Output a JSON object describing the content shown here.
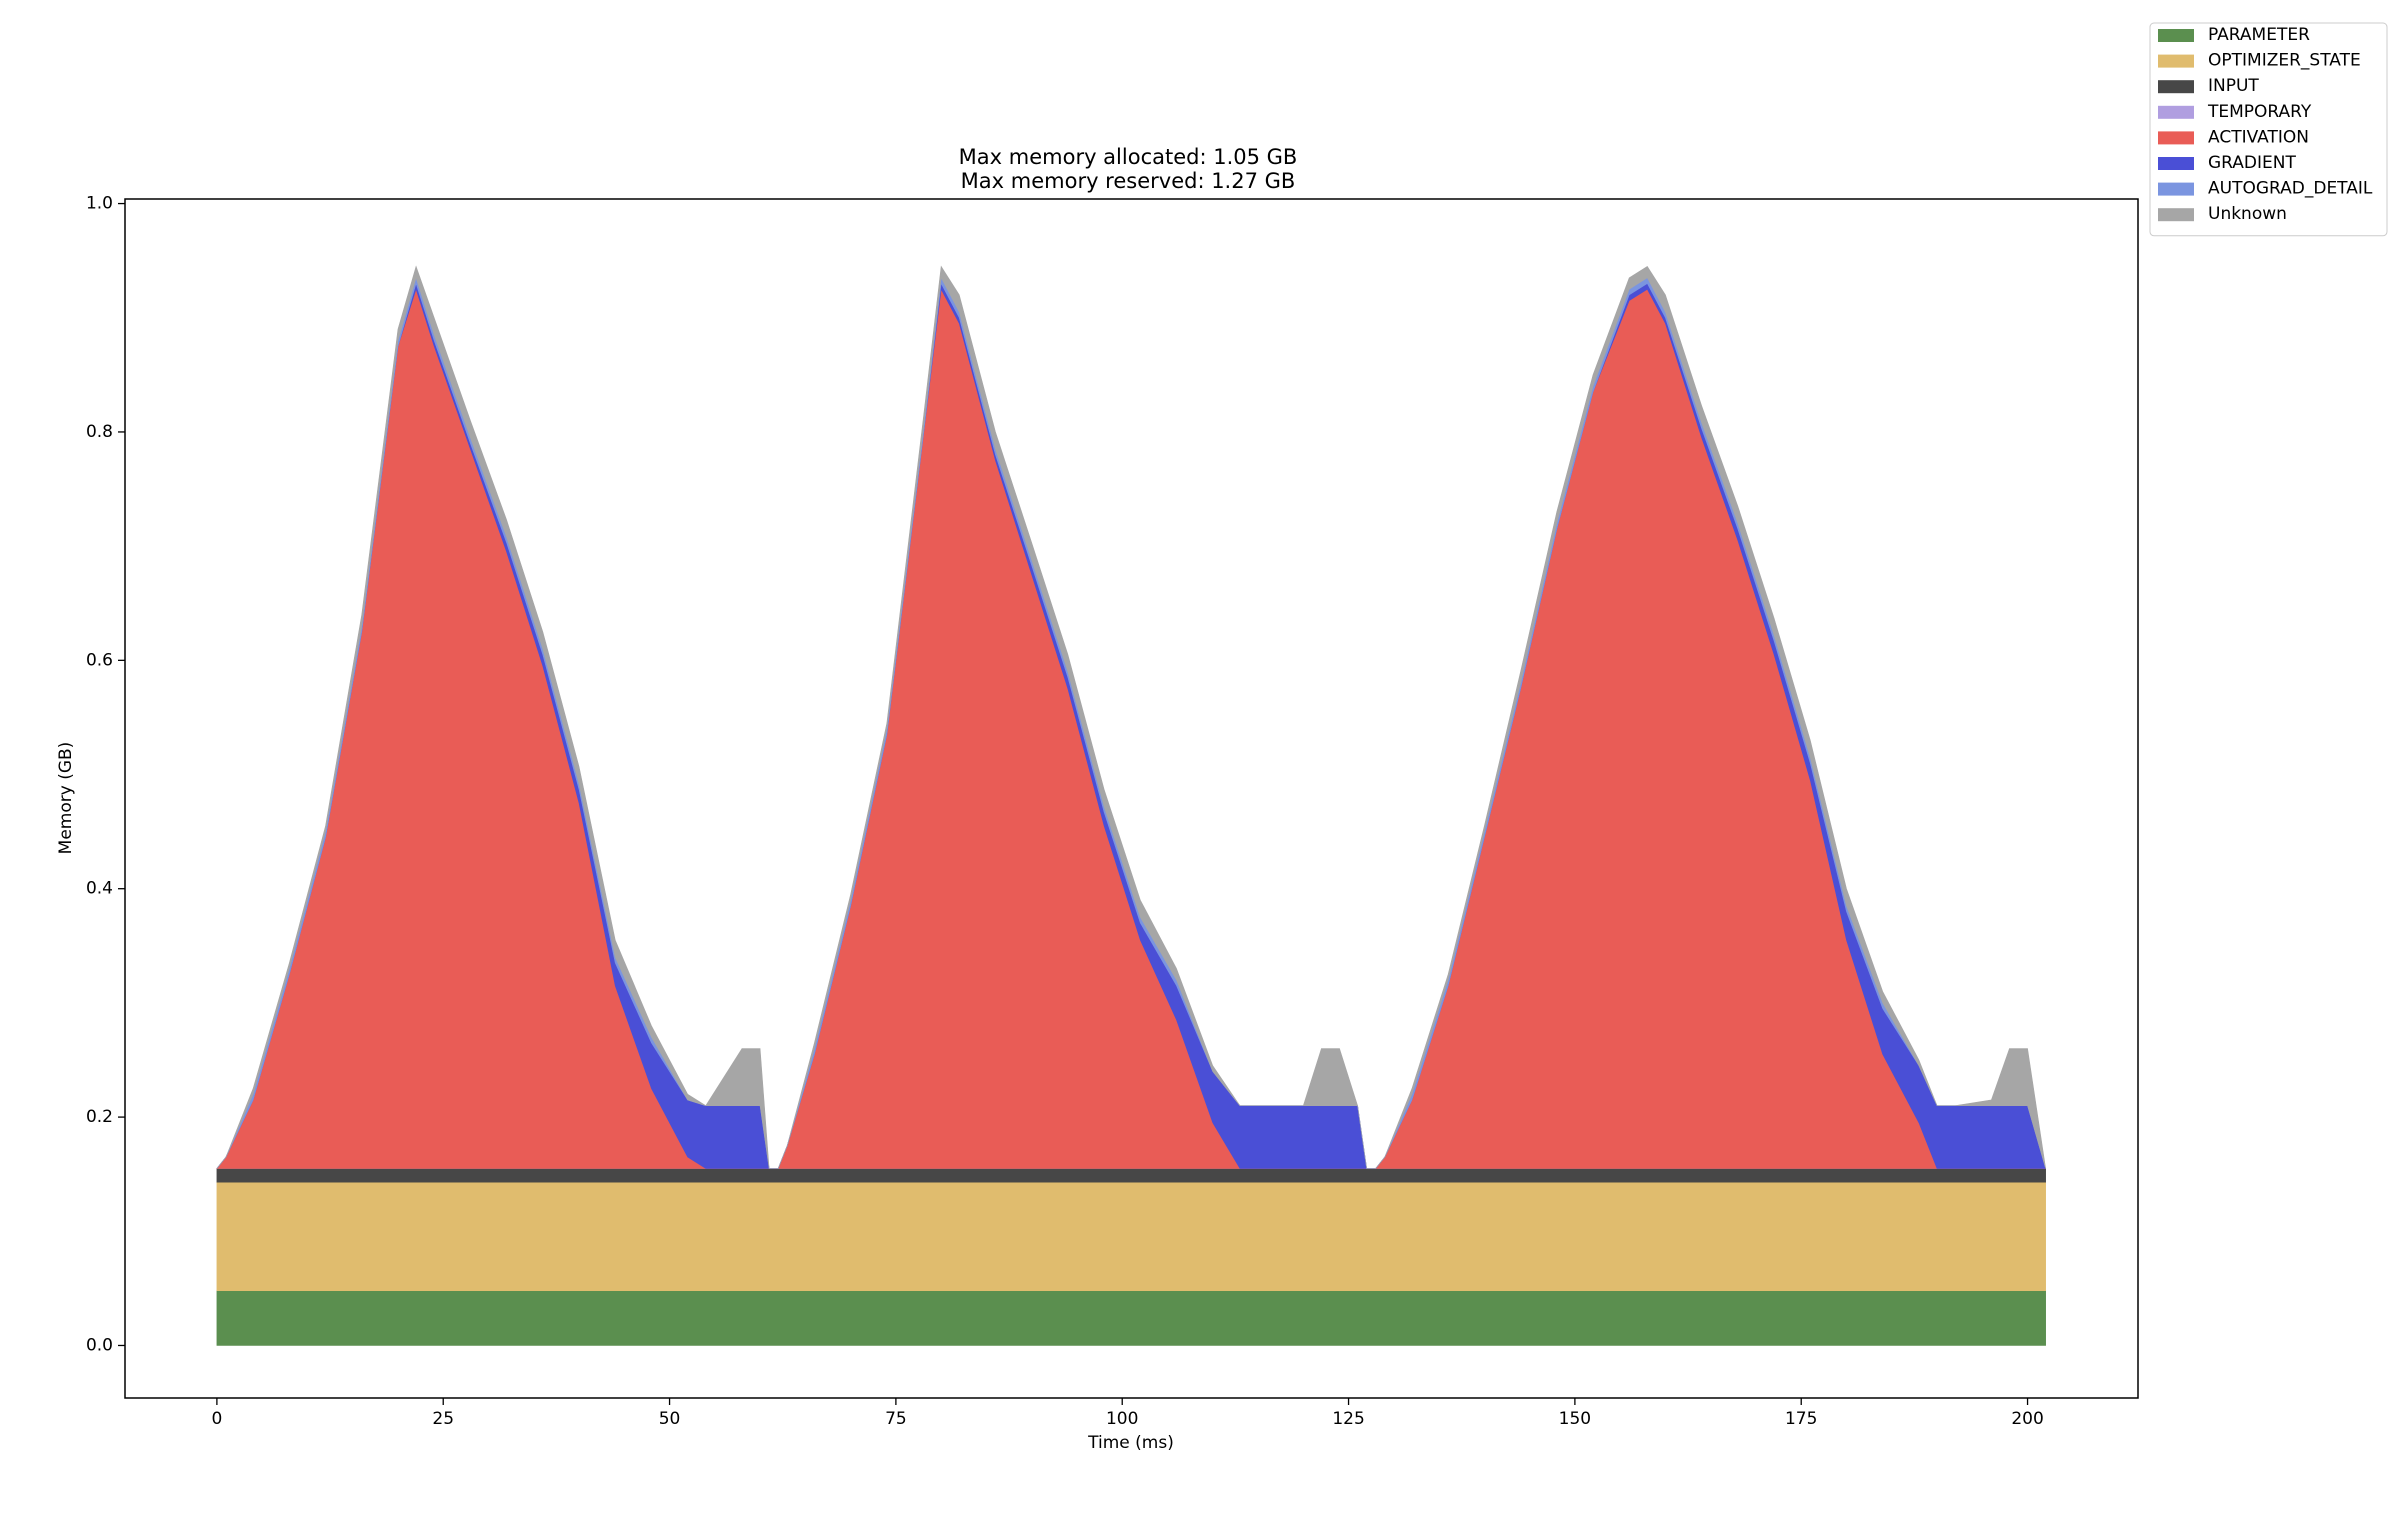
{
  "chart_data": {
    "type": "stacked_area",
    "title": "Max memory allocated: 1.05 GB",
    "subtitle": "Max memory reserved: 1.27 GB",
    "x_label": "Time (ms)",
    "y_label": "Memory (GB)",
    "xlim": [
      -10.15,
      212.2
    ],
    "ylim": [
      -0.046,
      1.004
    ],
    "xticks": [
      0,
      25,
      50,
      75,
      100,
      125,
      150,
      175,
      200
    ],
    "yticks": [
      {
        "value": 0,
        "label": "0.0"
      },
      0.2,
      0.4,
      0.6,
      0.8,
      {
        "value": 1,
        "label": "1.0"
      }
    ],
    "legend": "outside upper right",
    "x": [
      0,
      1,
      4,
      8,
      12,
      16,
      20,
      22,
      24,
      28,
      32,
      36,
      40,
      44,
      48,
      52,
      54,
      58,
      60,
      61,
      62,
      63,
      66,
      70,
      74,
      78,
      80,
      82,
      86,
      90,
      94,
      98,
      102,
      106,
      110,
      113,
      116,
      120,
      122,
      124,
      126,
      127,
      128,
      129,
      132,
      136,
      140,
      144,
      148,
      152,
      156,
      158,
      160,
      164,
      168,
      172,
      176,
      180,
      184,
      188,
      190,
      192,
      196,
      198,
      200,
      202
    ],
    "series": [
      {
        "name": "PARAMETER",
        "color": "#5b8f4f",
        "values": [
          0.048,
          0.048,
          0.048,
          0.048,
          0.048,
          0.048,
          0.048,
          0.048,
          0.048,
          0.048,
          0.048,
          0.048,
          0.048,
          0.048,
          0.048,
          0.048,
          0.048,
          0.048,
          0.048,
          0.048,
          0.048,
          0.048,
          0.048,
          0.048,
          0.048,
          0.048,
          0.048,
          0.048,
          0.048,
          0.048,
          0.048,
          0.048,
          0.048,
          0.048,
          0.048,
          0.048,
          0.048,
          0.048,
          0.048,
          0.048,
          0.048,
          0.048,
          0.048,
          0.048,
          0.048,
          0.048,
          0.048,
          0.048,
          0.048,
          0.048,
          0.048,
          0.048,
          0.048,
          0.048,
          0.048,
          0.048,
          0.048,
          0.048,
          0.048,
          0.048,
          0.048,
          0.048,
          0.048,
          0.048,
          0.048,
          0.048
        ]
      },
      {
        "name": "OPTIMIZER_STATE",
        "color": "#e0bc6e",
        "values": [
          0.095,
          0.095,
          0.095,
          0.095,
          0.095,
          0.095,
          0.095,
          0.095,
          0.095,
          0.095,
          0.095,
          0.095,
          0.095,
          0.095,
          0.095,
          0.095,
          0.095,
          0.095,
          0.095,
          0.095,
          0.095,
          0.095,
          0.095,
          0.095,
          0.095,
          0.095,
          0.095,
          0.095,
          0.095,
          0.095,
          0.095,
          0.095,
          0.095,
          0.095,
          0.095,
          0.095,
          0.095,
          0.095,
          0.095,
          0.095,
          0.095,
          0.095,
          0.095,
          0.095,
          0.095,
          0.095,
          0.095,
          0.095,
          0.095,
          0.095,
          0.095,
          0.095,
          0.095,
          0.095,
          0.095,
          0.095,
          0.095,
          0.095,
          0.095,
          0.095,
          0.095,
          0.095,
          0.095,
          0.095,
          0.095,
          0.095
        ]
      },
      {
        "name": "INPUT",
        "color": "#474747",
        "values": [
          0.012,
          0.012,
          0.012,
          0.012,
          0.012,
          0.012,
          0.012,
          0.012,
          0.012,
          0.012,
          0.012,
          0.012,
          0.012,
          0.012,
          0.012,
          0.012,
          0.012,
          0.012,
          0.012,
          0.012,
          0.012,
          0.012,
          0.012,
          0.012,
          0.012,
          0.012,
          0.012,
          0.012,
          0.012,
          0.012,
          0.012,
          0.012,
          0.012,
          0.012,
          0.012,
          0.012,
          0.012,
          0.012,
          0.012,
          0.012,
          0.012,
          0.012,
          0.012,
          0.012,
          0.012,
          0.012,
          0.012,
          0.012,
          0.012,
          0.012,
          0.012,
          0.012,
          0.012,
          0.012,
          0.012,
          0.012,
          0.012,
          0.012,
          0.012,
          0.012,
          0.012,
          0.012,
          0.012,
          0.012,
          0.012,
          0.012
        ]
      },
      {
        "name": "TEMPORARY",
        "color": "#b09ee0",
        "values": [
          0,
          0,
          0,
          0,
          0,
          0,
          0,
          0,
          0,
          0,
          0,
          0,
          0,
          0,
          0,
          0,
          0,
          0,
          0,
          0,
          0,
          0,
          0,
          0,
          0,
          0,
          0,
          0,
          0,
          0,
          0,
          0,
          0,
          0,
          0,
          0,
          0,
          0,
          0,
          0,
          0,
          0,
          0,
          0,
          0,
          0,
          0,
          0,
          0,
          0,
          0,
          0,
          0,
          0,
          0,
          0,
          0,
          0,
          0,
          0,
          0,
          0,
          0,
          0,
          0,
          0
        ]
      },
      {
        "name": "ACTIVATION",
        "color": "#e95c56",
        "values": [
          0,
          0.01,
          0.06,
          0.17,
          0.29,
          0.47,
          0.72,
          0.77,
          0.72,
          0.63,
          0.54,
          0.44,
          0.32,
          0.16,
          0.07,
          0.01,
          0,
          0,
          0,
          0,
          0,
          0.02,
          0.1,
          0.23,
          0.38,
          0.64,
          0.77,
          0.74,
          0.62,
          0.52,
          0.42,
          0.3,
          0.2,
          0.13,
          0.04,
          0,
          0,
          0,
          0,
          0,
          0,
          0,
          0,
          0.01,
          0.06,
          0.16,
          0.29,
          0.42,
          0.56,
          0.68,
          0.76,
          0.77,
          0.74,
          0.64,
          0.55,
          0.45,
          0.34,
          0.2,
          0.1,
          0.04,
          0,
          0,
          0,
          0,
          0,
          0
        ]
      },
      {
        "name": "GRADIENT",
        "color": "#4a4fd6",
        "values": [
          0,
          0,
          0,
          0,
          0,
          0,
          0,
          0.005,
          0.005,
          0.005,
          0.008,
          0.01,
          0.012,
          0.02,
          0.04,
          0.05,
          0.055,
          0.055,
          0.055,
          0,
          0,
          0,
          0,
          0,
          0,
          0,
          0.005,
          0.005,
          0.005,
          0.008,
          0.01,
          0.012,
          0.015,
          0.03,
          0.045,
          0.055,
          0.055,
          0.055,
          0.055,
          0.055,
          0.055,
          0,
          0,
          0,
          0,
          0,
          0,
          0,
          0,
          0,
          0.005,
          0.005,
          0.005,
          0.008,
          0.01,
          0.012,
          0.015,
          0.025,
          0.04,
          0.05,
          0.055,
          0.055,
          0.055,
          0.055,
          0.055,
          0
        ]
      },
      {
        "name": "AUTOGRAD_DETAIL",
        "color": "#7b95e0",
        "values": [
          0,
          0,
          0.005,
          0.005,
          0.005,
          0.005,
          0.005,
          0.005,
          0.005,
          0.005,
          0.005,
          0.005,
          0.005,
          0.005,
          0.005,
          0,
          0,
          0,
          0,
          0,
          0,
          0,
          0.005,
          0.005,
          0.005,
          0.005,
          0.005,
          0.005,
          0.005,
          0.005,
          0.005,
          0.005,
          0.005,
          0.005,
          0,
          0,
          0,
          0,
          0,
          0,
          0,
          0,
          0,
          0,
          0.005,
          0.005,
          0.005,
          0.005,
          0.005,
          0.005,
          0.005,
          0.005,
          0.005,
          0.005,
          0.005,
          0.005,
          0.005,
          0.005,
          0.005,
          0,
          0,
          0,
          0,
          0,
          0,
          0
        ]
      },
      {
        "name": "Unknown",
        "color": "#a6a6a6",
        "values": [
          0,
          0,
          0.005,
          0.005,
          0.005,
          0.01,
          0.01,
          0.01,
          0.015,
          0.015,
          0.015,
          0.015,
          0.015,
          0.015,
          0.01,
          0.005,
          0,
          0.05,
          0.05,
          0,
          0,
          0,
          0.005,
          0.005,
          0.005,
          0.01,
          0.01,
          0.015,
          0.015,
          0.015,
          0.015,
          0.015,
          0.015,
          0.01,
          0.005,
          0,
          0,
          0,
          0.05,
          0.05,
          0,
          0,
          0,
          0,
          0.005,
          0.005,
          0.005,
          0.01,
          0.01,
          0.01,
          0.01,
          0.01,
          0.015,
          0.015,
          0.015,
          0.015,
          0.015,
          0.015,
          0.01,
          0.005,
          0,
          0,
          0.005,
          0.05,
          0.05,
          0
        ]
      }
    ]
  }
}
